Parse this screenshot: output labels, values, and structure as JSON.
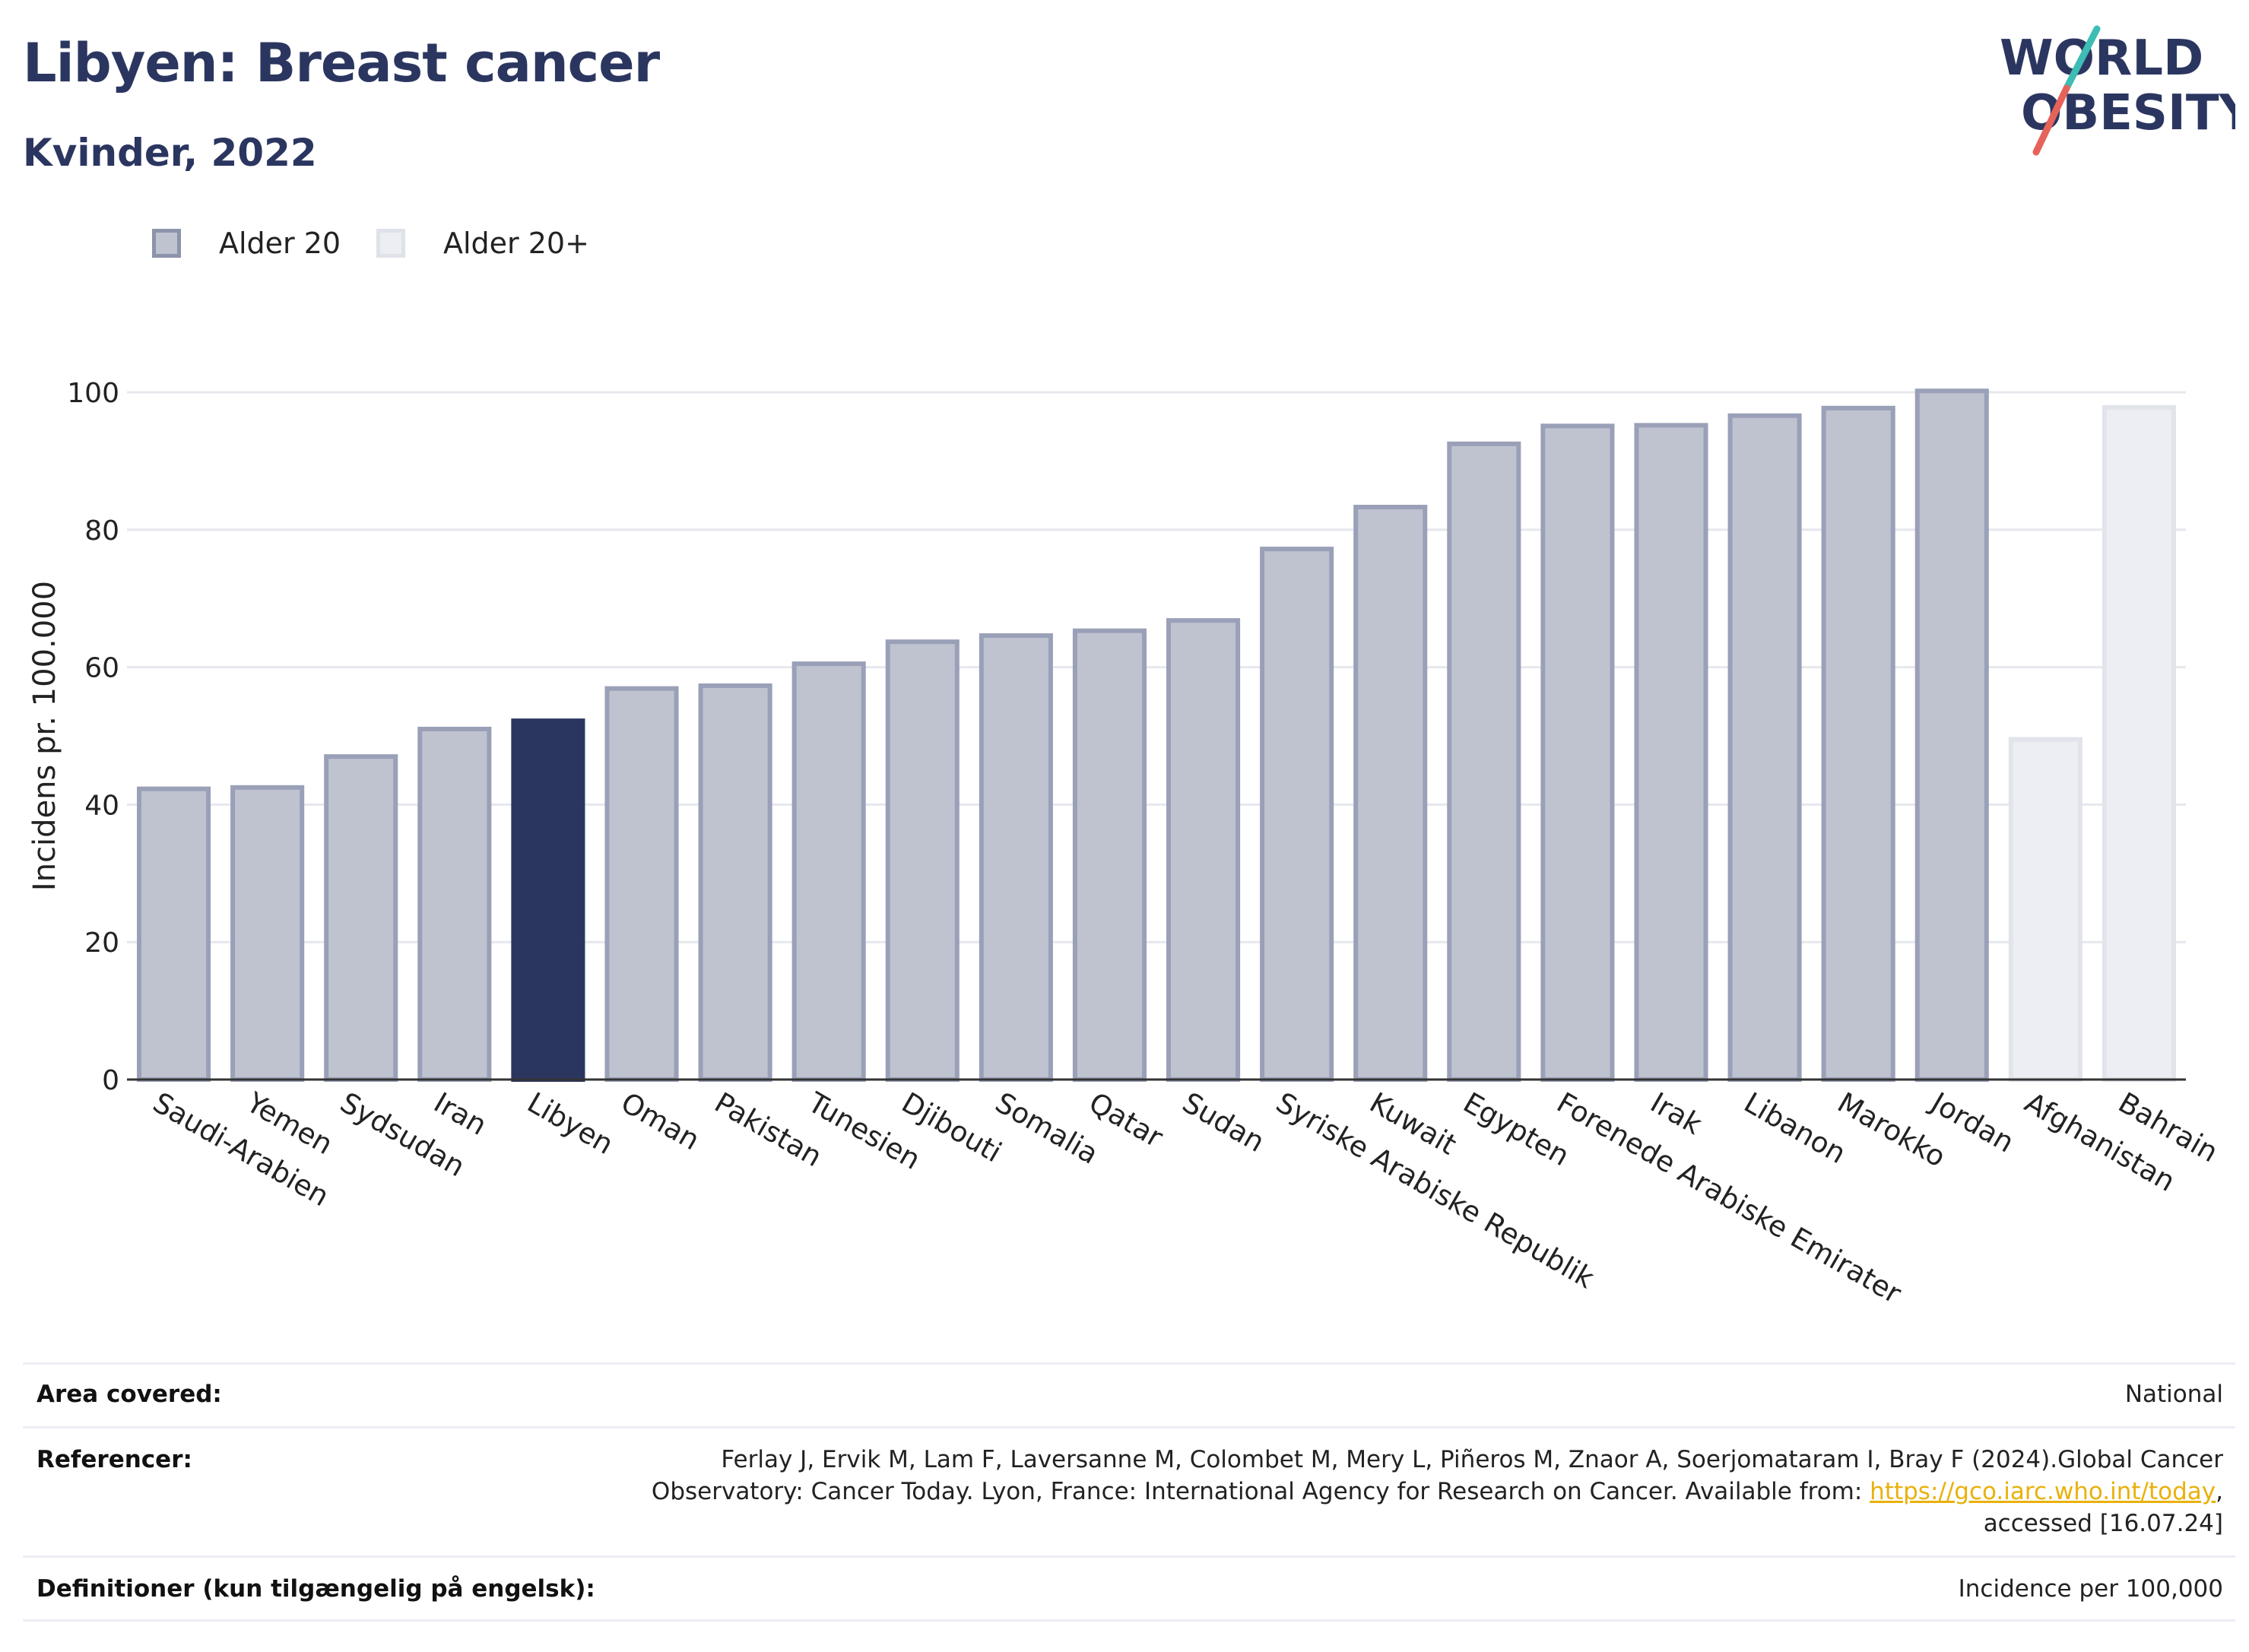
{
  "header": {
    "title": "Libyen: Breast cancer",
    "subtitle": "Kvinder, 2022"
  },
  "logo": {
    "line1": "WORLD",
    "line2": "OBESITY",
    "slash_colors": [
      "#3dbdb3",
      "#e5635a"
    ],
    "text_color": "#2b3660"
  },
  "legend": {
    "items": [
      {
        "label": "Alder 20",
        "fill": "#bfc3d0",
        "stroke": "#8d93ab"
      },
      {
        "label": "Alder 20+",
        "fill": "#eceef3",
        "stroke": "#e0e2ea"
      }
    ]
  },
  "colors": {
    "bar_fill": "#bfc3d0",
    "bar_stroke": "#9aa0b7",
    "highlight": "#2b3660",
    "light_fill": "#eceef3",
    "light_stroke": "#e2e4eb",
    "grid": "#e6e8ee",
    "axis": "#333333"
  },
  "chart_data": {
    "type": "bar",
    "ylabel": "Incidens pr. 100.000",
    "xlabel": "",
    "ylim": [
      0,
      100
    ],
    "yticks": [
      0,
      20,
      40,
      60,
      80,
      100
    ],
    "grid": true,
    "legend_position": "top-left",
    "categories": [
      "Saudi-Arabien",
      "Yemen",
      "Sydsudan",
      "Iran",
      "Libyen",
      "Oman",
      "Pakistan",
      "Tunesien",
      "Djibouti",
      "Somalia",
      "Qatar",
      "Sudan",
      "Syriske Arabiske Republik",
      "Kuwait",
      "Egypten",
      "Forenede Arabiske Emirater",
      "Irak",
      "Libanon",
      "Marokko",
      "Jordan",
      "Afghanistan",
      "Bahrain"
    ],
    "values": [
      42.3,
      42.5,
      47.0,
      51.0,
      52.2,
      56.9,
      57.3,
      60.5,
      63.7,
      64.6,
      65.3,
      66.8,
      77.2,
      83.3,
      92.5,
      95.1,
      95.2,
      96.6,
      97.7,
      100.2,
      49.5,
      97.8
    ],
    "series_membership": [
      "Alder 20",
      "Alder 20",
      "Alder 20",
      "Alder 20",
      "Alder 20",
      "Alder 20",
      "Alder 20",
      "Alder 20",
      "Alder 20",
      "Alder 20",
      "Alder 20",
      "Alder 20",
      "Alder 20",
      "Alder 20",
      "Alder 20",
      "Alder 20",
      "Alder 20",
      "Alder 20",
      "Alder 20",
      "Alder 20",
      "Alder 20+",
      "Alder 20+"
    ],
    "highlight": "Libyen"
  },
  "footer": {
    "rows": [
      {
        "label": "Area covered:",
        "value": "National"
      },
      {
        "label": "Referencer:",
        "value_line1": "Ferlay J, Ervik M, Lam F, Laversanne M, Colombet M, Mery L, Piñeros M, Znaor A, Soerjomataram I, Bray F (2024).Global Cancer",
        "value_line2_pre": "Observatory: Cancer Today. Lyon, France: International Agency for Research on Cancer. Available from: ",
        "link": "https://gco.iarc.who.int/today",
        "value_line2_post": ",",
        "value_line3": "accessed [16.07.24]"
      },
      {
        "label": "Definitioner (kun tilgængelig på engelsk):",
        "value": "Incidence per 100,000"
      }
    ]
  }
}
